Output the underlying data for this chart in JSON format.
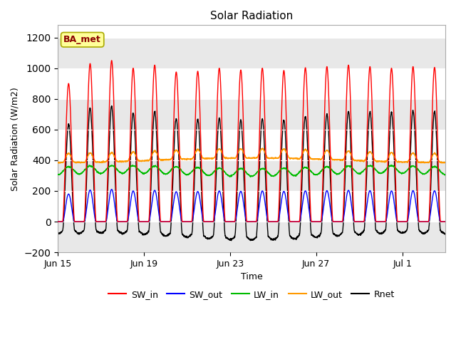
{
  "title": "Solar Radiation",
  "xlabel": "Time",
  "ylabel": "Solar Radiation (W/m2)",
  "ylim": [
    -200,
    1280
  ],
  "yticks": [
    -200,
    0,
    200,
    400,
    600,
    800,
    1000,
    1200
  ],
  "fig_bg_color": "#ffffff",
  "plot_bg_color": "#ffffff",
  "grid_band_color": "#e8e8e8",
  "annotation_text": "BA_met",
  "annotation_color": "#8b0000",
  "annotation_bg": "#ffff99",
  "annotation_edge": "#aaaa00",
  "num_days": 18,
  "points_per_day": 144,
  "colors": {
    "SW_in": "#ff0000",
    "SW_out": "#0000ff",
    "LW_in": "#00bb00",
    "LW_out": "#ff9900",
    "Rnet": "#000000"
  },
  "lw": 1.0,
  "x_tick_labels": [
    "Jun 15",
    "Jun 19",
    "Jun 23",
    "Jun 27",
    "Jul 1"
  ],
  "x_tick_positions": [
    0,
    4,
    8,
    12,
    16
  ],
  "x_lim": [
    0,
    18
  ]
}
